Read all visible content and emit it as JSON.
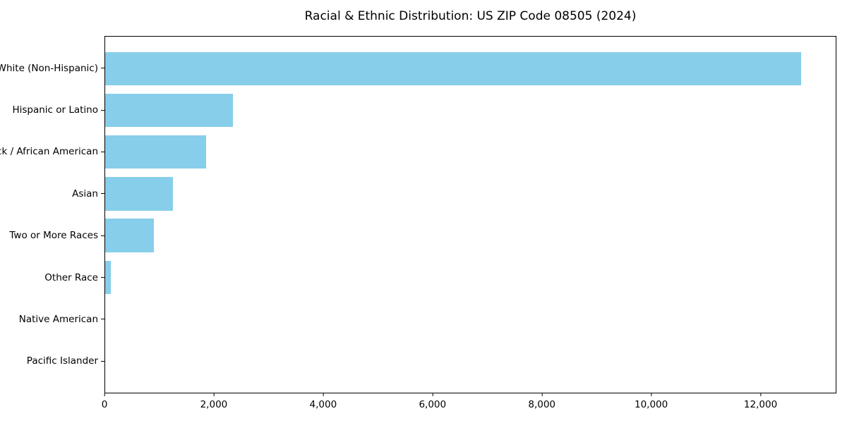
{
  "chart_data": {
    "type": "bar",
    "orientation": "horizontal",
    "title": "Racial & Ethnic Distribution: US ZIP Code 08505 (2024)",
    "categories": [
      "White (Non-Hispanic)",
      "Hispanic or Latino",
      "Black / African American",
      "Asian",
      "Two or More Races",
      "Other Race",
      "Native American",
      "Pacific Islander"
    ],
    "values": [
      12750,
      2340,
      1845,
      1240,
      890,
      100,
      0,
      0
    ],
    "xlabel": "",
    "ylabel": "",
    "xlim": [
      0,
      13387
    ],
    "x_ticks": [
      0,
      2000,
      4000,
      6000,
      8000,
      10000,
      12000
    ],
    "x_tick_labels": [
      "0",
      "2,000",
      "4,000",
      "6,000",
      "8,000",
      "10,000",
      "12,000"
    ],
    "bar_color": "#87CEEB",
    "background_color": "#ffffff",
    "axis_color": "#000000",
    "grid": false,
    "legend": null
  }
}
